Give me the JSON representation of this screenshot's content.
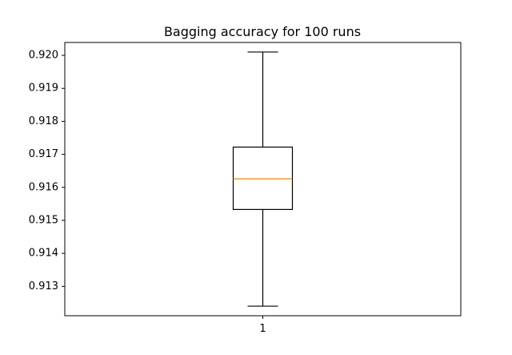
{
  "chart_data": {
    "type": "box",
    "title": "Bagging accuracy for 100 runs",
    "xlabel": "",
    "ylabel": "",
    "categories": [
      "1"
    ],
    "boxes": [
      {
        "category": "1",
        "whisker_low": 0.9124,
        "q1": 0.91533,
        "median": 0.91626,
        "q3": 0.91722,
        "whisker_high": 0.9201
      }
    ],
    "yticks": [
      "0.913",
      "0.914",
      "0.915",
      "0.916",
      "0.917",
      "0.918",
      "0.919",
      "0.920"
    ],
    "ylim": [
      0.91211,
      0.92039
    ],
    "grid": false,
    "colors": {
      "box": "#000000",
      "median": "#ff7f0e",
      "axes": "#000000",
      "background": "#ffffff"
    }
  }
}
